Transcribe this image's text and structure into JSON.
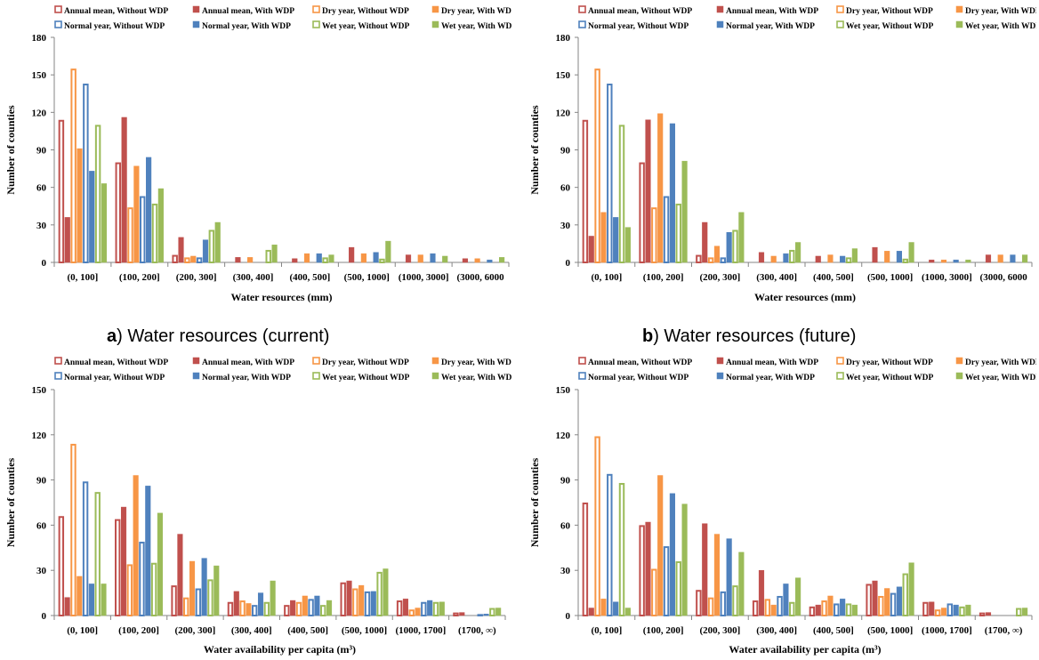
{
  "legend_entries": [
    {
      "label": "Annual mean, Without WDP",
      "color": "#c0504d",
      "fill": "hollow"
    },
    {
      "label": "Annual mean, With WDP",
      "color": "#c0504d",
      "fill": "solid"
    },
    {
      "label": "Dry year, Without WDP",
      "color": "#f79646",
      "fill": "hollow"
    },
    {
      "label": "Dry year, With WDP",
      "color": "#f79646",
      "fill": "solid"
    },
    {
      "label": "Normal year, Without WDP",
      "color": "#4f81bd",
      "fill": "hollow"
    },
    {
      "label": "Normal year, With WDP",
      "color": "#4f81bd",
      "fill": "solid"
    },
    {
      "label": "Wet year, Without WDP",
      "color": "#9bbb59",
      "fill": "hollow"
    },
    {
      "label": "Wet year, With WDP",
      "color": "#9bbb59",
      "fill": "solid"
    }
  ],
  "captions": [
    {
      "letter": "a",
      "text": ") Water resources (current)"
    },
    {
      "letter": "b",
      "text": ") Water resources (future)"
    }
  ],
  "chart_data": [
    {
      "type": "bar",
      "xlabel": "Water resources (mm)",
      "ylabel": "Number of counties",
      "ylim": [
        0,
        180
      ],
      "yticks": [
        0,
        30,
        60,
        90,
        120,
        150,
        180
      ],
      "grid": false,
      "legend_position": "top",
      "categories": [
        "(0, 100]",
        "(100, 200]",
        "(200, 300]",
        "(300, 400]",
        "(400, 500]",
        "(500, 1000]",
        "(1000, 3000]",
        "(3000, 6000"
      ],
      "series": [
        {
          "name": "Annual mean, Without WDP",
          "values": [
            114,
            80,
            6,
            0,
            0,
            0,
            0,
            0
          ]
        },
        {
          "name": "Annual mean, With WDP",
          "values": [
            36,
            116,
            20,
            4,
            3,
            12,
            6,
            3
          ]
        },
        {
          "name": "Dry year, Without WDP",
          "values": [
            155,
            44,
            4,
            0,
            0,
            0,
            0,
            0
          ]
        },
        {
          "name": "Dry year, With WDP",
          "values": [
            91,
            77,
            5,
            4,
            7,
            7,
            6,
            3
          ]
        },
        {
          "name": "Normal year, Without WDP",
          "values": [
            143,
            53,
            4,
            0,
            0,
            0,
            0,
            0
          ]
        },
        {
          "name": "Normal year, With WDP",
          "values": [
            73,
            84,
            18,
            0,
            7,
            8,
            7,
            2
          ]
        },
        {
          "name": "Wet year, Without WDP",
          "values": [
            110,
            47,
            26,
            10,
            4,
            3,
            0,
            0
          ]
        },
        {
          "name": "Wet year, With WDP",
          "values": [
            63,
            59,
            32,
            14,
            6,
            17,
            5,
            4
          ]
        }
      ]
    },
    {
      "type": "bar",
      "xlabel": "Water resources (mm)",
      "ylabel": "Number of counties",
      "ylim": [
        0,
        180
      ],
      "yticks": [
        0,
        30,
        60,
        90,
        120,
        150,
        180
      ],
      "grid": false,
      "legend_position": "top",
      "categories": [
        "(0, 100]",
        "(100, 200]",
        "(200, 300]",
        "(300, 400]",
        "(400, 500]",
        "(500, 1000]",
        "(1000, 3000]",
        "(3000, 6000"
      ],
      "series": [
        {
          "name": "Annual mean, Without WDP",
          "values": [
            114,
            80,
            6,
            0,
            0,
            0,
            0,
            0
          ]
        },
        {
          "name": "Annual mean, With WDP",
          "values": [
            21,
            114,
            32,
            8,
            5,
            12,
            2,
            6
          ]
        },
        {
          "name": "Dry year, Without WDP",
          "values": [
            155,
            44,
            4,
            0,
            0,
            0,
            0,
            0
          ]
        },
        {
          "name": "Dry year, With WDP",
          "values": [
            40,
            119,
            13,
            5,
            6,
            9,
            2,
            6
          ]
        },
        {
          "name": "Normal year, Without WDP",
          "values": [
            143,
            53,
            4,
            0,
            0,
            0,
            0,
            0
          ]
        },
        {
          "name": "Normal year, With WDP",
          "values": [
            36,
            111,
            24,
            7,
            5,
            9,
            2,
            6
          ]
        },
        {
          "name": "Wet year, Without WDP",
          "values": [
            110,
            47,
            26,
            10,
            4,
            3,
            0,
            0
          ]
        },
        {
          "name": "Wet year, With WDP",
          "values": [
            28,
            81,
            40,
            16,
            11,
            16,
            2,
            6
          ]
        }
      ]
    },
    {
      "type": "bar",
      "xlabel": "Water availability per capita (m³)",
      "ylabel": "Number of counties",
      "ylim": [
        0,
        150
      ],
      "yticks": [
        0,
        30,
        60,
        90,
        120,
        150
      ],
      "grid": false,
      "legend_position": "top",
      "categories": [
        "(0, 100]",
        "(100, 200]",
        "(200, 300]",
        "(300, 400]",
        "(400, 500]",
        "(500, 1000]",
        "(1000, 1700]",
        "(1700, ∞)"
      ],
      "series": [
        {
          "name": "Annual mean, Without WDP",
          "values": [
            66,
            64,
            20,
            9,
            7,
            22,
            10,
            2
          ]
        },
        {
          "name": "Annual mean, With WDP",
          "values": [
            12,
            72,
            54,
            16,
            10,
            23,
            11,
            2
          ]
        },
        {
          "name": "Dry year, Without WDP",
          "values": [
            114,
            34,
            12,
            10,
            9,
            18,
            4,
            0
          ]
        },
        {
          "name": "Dry year, With WDP",
          "values": [
            26,
            93,
            36,
            8,
            13,
            20,
            5,
            0
          ]
        },
        {
          "name": "Normal year, Without WDP",
          "values": [
            89,
            49,
            18,
            7,
            11,
            16,
            9,
            1
          ]
        },
        {
          "name": "Normal year, With WDP",
          "values": [
            21,
            86,
            38,
            15,
            13,
            16,
            10,
            1
          ]
        },
        {
          "name": "Wet year, Without WDP",
          "values": [
            82,
            35,
            24,
            9,
            7,
            29,
            9,
            5
          ]
        },
        {
          "name": "Wet year, With WDP",
          "values": [
            21,
            68,
            33,
            23,
            10,
            31,
            9,
            5
          ]
        }
      ]
    },
    {
      "type": "bar",
      "xlabel": "Water availability per capita (m³)",
      "ylabel": "Number of counties",
      "ylim": [
        0,
        150
      ],
      "yticks": [
        0,
        30,
        60,
        90,
        120,
        150
      ],
      "grid": false,
      "legend_position": "top",
      "categories": [
        "(0, 100]",
        "(100, 200]",
        "(200, 300]",
        "(300, 400]",
        "(400, 500]",
        "(500, 1000]",
        "(1000, 1700]",
        "(1700, ∞)"
      ],
      "series": [
        {
          "name": "Annual mean, Without WDP",
          "values": [
            75,
            60,
            17,
            10,
            6,
            21,
            9,
            2
          ]
        },
        {
          "name": "Annual mean, With WDP",
          "values": [
            5,
            62,
            61,
            30,
            7,
            23,
            9,
            2
          ]
        },
        {
          "name": "Dry year, Without WDP",
          "values": [
            119,
            31,
            12,
            11,
            10,
            13,
            4,
            0
          ]
        },
        {
          "name": "Dry year, With WDP",
          "values": [
            11,
            93,
            54,
            7,
            13,
            18,
            5,
            0
          ]
        },
        {
          "name": "Normal year, Without WDP",
          "values": [
            94,
            46,
            16,
            13,
            8,
            15,
            8,
            0
          ]
        },
        {
          "name": "Normal year, With WDP",
          "values": [
            9,
            81,
            51,
            21,
            11,
            19,
            7,
            0
          ]
        },
        {
          "name": "Wet year, Without WDP",
          "values": [
            88,
            36,
            20,
            9,
            8,
            28,
            6,
            5
          ]
        },
        {
          "name": "Wet year, With WDP",
          "values": [
            5,
            74,
            42,
            25,
            7,
            35,
            7,
            5
          ]
        }
      ]
    }
  ]
}
